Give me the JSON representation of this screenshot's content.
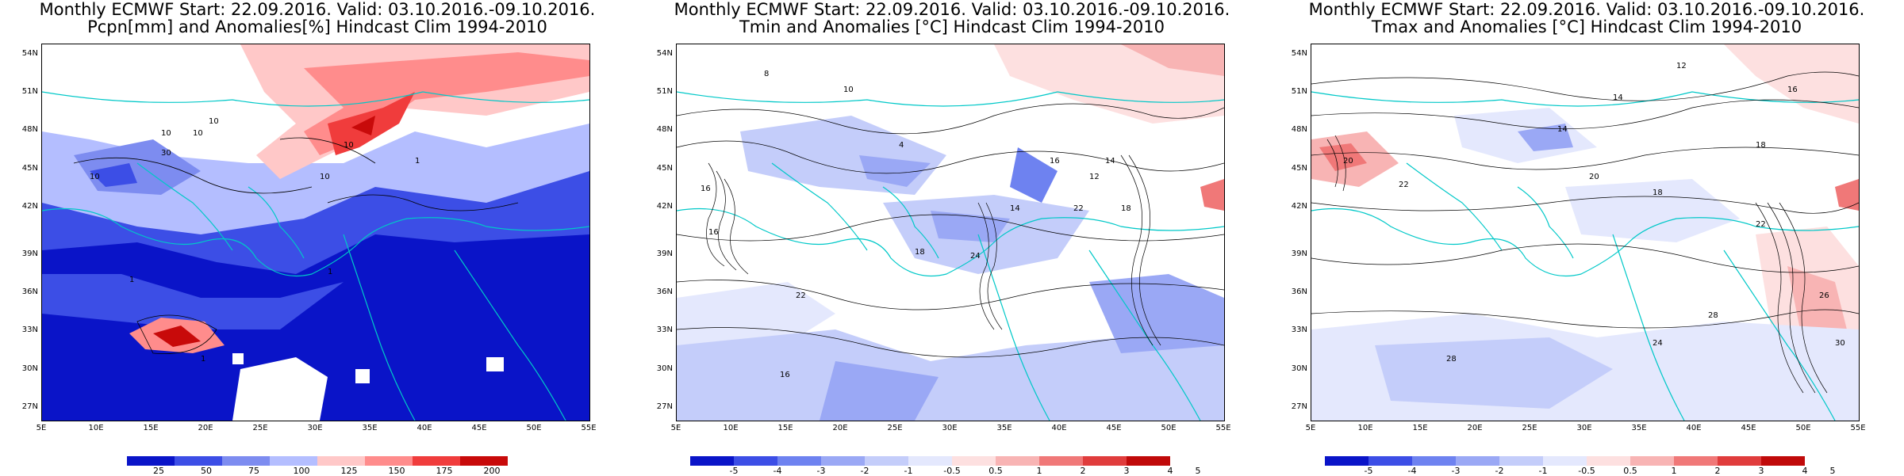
{
  "panels": [
    {
      "title1": "Monthly ECMWF Start: 22.09.2016. Valid: 03.10.2016.-09.10.2016.",
      "title2": "Pcpn[mm] and Anomalies[%] Hindcast Clim 1994-2010",
      "colorbar_labels": [
        "25",
        "50",
        "75",
        "100",
        "125",
        "150",
        "175",
        "200"
      ],
      "contour_labels": [
        "10",
        "10",
        "10",
        "30",
        "10",
        "10",
        "10",
        "1",
        "1",
        "1",
        "1"
      ]
    },
    {
      "title1": "Monthly ECMWF Start: 22.09.2016. Valid: 03.10.2016.-09.10.2016.",
      "title2": "Tmin and Anomalies [°C] Hindcast Clim 1994-2010",
      "colorbar_labels": [
        "-5",
        "-4",
        "-3",
        "-2",
        "-1",
        "-0.5",
        "0.5",
        "1",
        "2",
        "3",
        "4",
        "5"
      ],
      "contour_labels": [
        "8",
        "10",
        "16",
        "14",
        "4",
        "16",
        "18",
        "12",
        "14",
        "22",
        "16",
        "18",
        "22",
        "24",
        "16"
      ]
    },
    {
      "title1": "Monthly ECMWF Start: 22.09.2016. Valid: 03.10.2016.-09.10.2016.",
      "title2": "Tmax and Anomalies [°C] Hindcast Clim 1994-2010",
      "colorbar_labels": [
        "-5",
        "-4",
        "-3",
        "-2",
        "-1",
        "-0.5",
        "0.5",
        "1",
        "2",
        "3",
        "4",
        "5"
      ],
      "contour_labels": [
        "12",
        "14",
        "16",
        "18",
        "20",
        "22",
        "14",
        "20",
        "18",
        "24",
        "28",
        "26",
        "30",
        "28",
        "22"
      ]
    }
  ],
  "lat_labels": [
    "54N",
    "51N",
    "48N",
    "45N",
    "42N",
    "39N",
    "36N",
    "33N",
    "30N",
    "27N"
  ],
  "lon_labels": [
    "5E",
    "10E",
    "15E",
    "20E",
    "25E",
    "30E",
    "35E",
    "40E",
    "45E",
    "50E",
    "55E"
  ],
  "colors": {
    "precip_scale": [
      "#0a14c8",
      "#3c4ee6",
      "#7d8cf0",
      "#b4beff",
      "#ffffff",
      "#ffc8c8",
      "#ff8c8c",
      "#f03c3c",
      "#c80a0a"
    ],
    "temp_scale": [
      "#0a14c8",
      "#3c4ee6",
      "#6e82f0",
      "#9aa8f5",
      "#c4cdfa",
      "#e4e8fd",
      "#ffffff",
      "#fde0e0",
      "#f8b4b4",
      "#f07878",
      "#e03c3c",
      "#c00a0a"
    ],
    "coastline": "#00c8c8",
    "contour": "#000000"
  }
}
